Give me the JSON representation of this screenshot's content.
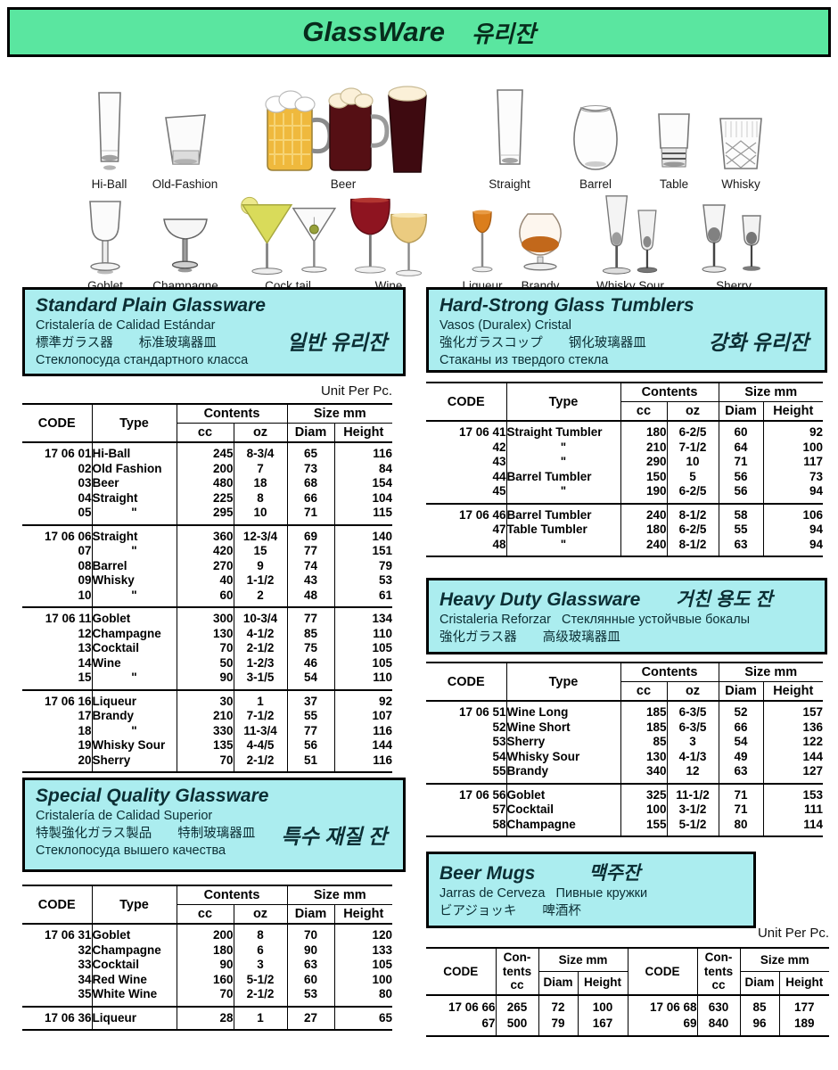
{
  "page": {
    "title_en": "GlassWare",
    "title_ko": "유리잔",
    "unit_note": "Unit Per Pc."
  },
  "figures": {
    "row1": [
      "Hi-Ball",
      "Old-Fashion",
      "Beer",
      "Straight",
      "Barrel",
      "Table",
      "Whisky"
    ],
    "row2": [
      "Goblet",
      "Champagne",
      "Cock tail",
      "Wine",
      "Liqueur",
      "Brandy",
      "Whisky Sour",
      "Sherry"
    ]
  },
  "sections": {
    "standard": {
      "title": "Standard Plain Glassware",
      "korean": "일반 유리잔",
      "line1": "Cristalería de Calidad Estándar",
      "line2": "標準ガラス器　　标准玻璃器皿",
      "line3": "Стеклопосуда стандартного класса"
    },
    "hard": {
      "title": "Hard-Strong Glass Tumblers",
      "korean": "강화 유리잔",
      "line1": "Vasos (Duralex) Cristal",
      "line2": "強化ガラスコップ　　钢化玻璃器皿",
      "line3": "Стаканы из твердого стекла"
    },
    "heavy": {
      "title": "Heavy Duty Glassware",
      "korean": "거친 용도 잔",
      "line1": "Cristaleria Reforzar   Стеклянные устойчвые бокалы",
      "line2": "強化ガラス器　　高级玻璃器皿"
    },
    "special": {
      "title": "Special Quality Glassware",
      "korean": "특수 재질 잔",
      "line1": "Cristalería de Calidad Superior",
      "line2": "特製強化ガラス製品　　特制玻璃器皿",
      "line3": "Стеклопосуда вышего качества"
    },
    "beer": {
      "title": "Beer Mugs",
      "korean": "맥주잔",
      "line1": "Jarras de Cerveza   Пивные кружки",
      "line2": "ビアジョッキ　　啤酒杯"
    }
  },
  "headers": {
    "code": "CODE",
    "type": "Type",
    "contents": "Contents",
    "cc": "cc",
    "oz": "oz",
    "size": "Size mm",
    "diam": "Diam",
    "height": "Height",
    "con_lines": [
      "Con-",
      "tents",
      "cc"
    ]
  },
  "tables": {
    "standard": [
      [
        [
          "17 06 01",
          "Hi-Ball",
          "245",
          "8-3/4",
          "65",
          "116"
        ],
        [
          "02",
          "Old Fashion",
          "200",
          "7",
          "73",
          "84"
        ],
        [
          "03",
          "Beer",
          "480",
          "18",
          "68",
          "154"
        ],
        [
          "04",
          "Straight",
          "225",
          "8",
          "66",
          "104"
        ],
        [
          "05",
          "\"",
          "295",
          "10",
          "71",
          "115"
        ]
      ],
      [
        [
          "17 06 06",
          "Straight",
          "360",
          "12-3/4",
          "69",
          "140"
        ],
        [
          "07",
          "\"",
          "420",
          "15",
          "77",
          "151"
        ],
        [
          "08",
          "Barrel",
          "270",
          "9",
          "74",
          "79"
        ],
        [
          "09",
          "Whisky",
          "40",
          "1-1/2",
          "43",
          "53"
        ],
        [
          "10",
          "\"",
          "60",
          "2",
          "48",
          "61"
        ]
      ],
      [
        [
          "17 06 11",
          "Goblet",
          "300",
          "10-3/4",
          "77",
          "134"
        ],
        [
          "12",
          "Champagne",
          "130",
          "4-1/2",
          "85",
          "110"
        ],
        [
          "13",
          "Cocktail",
          "70",
          "2-1/2",
          "75",
          "105"
        ],
        [
          "14",
          "Wine",
          "50",
          "1-2/3",
          "46",
          "105"
        ],
        [
          "15",
          "\"",
          "90",
          "3-1/5",
          "54",
          "110"
        ]
      ],
      [
        [
          "17 06 16",
          "Liqueur",
          "30",
          "1",
          "37",
          "92"
        ],
        [
          "17",
          "Brandy",
          "210",
          "7-1/2",
          "55",
          "107"
        ],
        [
          "18",
          "\"",
          "330",
          "11-3/4",
          "77",
          "116"
        ],
        [
          "19",
          "Whisky Sour",
          "135",
          "4-4/5",
          "56",
          "144"
        ],
        [
          "20",
          "Sherry",
          "70",
          "2-1/2",
          "51",
          "116"
        ]
      ]
    ],
    "hard": [
      [
        [
          "17 06 41",
          "Straight Tumbler",
          "180",
          "6-2/5",
          "60",
          "92"
        ],
        [
          "42",
          "\"",
          "210",
          "7-1/2",
          "64",
          "100"
        ],
        [
          "43",
          "\"",
          "290",
          "10",
          "71",
          "117"
        ],
        [
          "44",
          "Barrel Tumbler",
          "150",
          "5",
          "56",
          "73"
        ],
        [
          "45",
          "\"",
          "190",
          "6-2/5",
          "56",
          "94"
        ]
      ],
      [
        [
          "17 06 46",
          "Barrel Tumbler",
          "240",
          "8-1/2",
          "58",
          "106"
        ],
        [
          "47",
          "Table Tumbler",
          "180",
          "6-2/5",
          "55",
          "94"
        ],
        [
          "48",
          "\"",
          "240",
          "8-1/2",
          "63",
          "94"
        ]
      ]
    ],
    "heavy": [
      [
        [
          "17 06 51",
          "Wine Long",
          "185",
          "6-3/5",
          "52",
          "157"
        ],
        [
          "52",
          "Wine Short",
          "185",
          "6-3/5",
          "66",
          "136"
        ],
        [
          "53",
          "Sherry",
          "85",
          "3",
          "54",
          "122"
        ],
        [
          "54",
          "Whisky Sour",
          "130",
          "4-1/3",
          "49",
          "144"
        ],
        [
          "55",
          "Brandy",
          "340",
          "12",
          "63",
          "127"
        ]
      ],
      [
        [
          "17 06 56",
          "Goblet",
          "325",
          "11-1/2",
          "71",
          "153"
        ],
        [
          "57",
          "Cocktail",
          "100",
          "3-1/2",
          "71",
          "111"
        ],
        [
          "58",
          "Champagne",
          "155",
          "5-1/2",
          "80",
          "114"
        ]
      ]
    ],
    "special": [
      [
        [
          "17 06 31",
          "Goblet",
          "200",
          "8",
          "70",
          "120"
        ],
        [
          "32",
          "Champagne",
          "180",
          "6",
          "90",
          "133"
        ],
        [
          "33",
          "Cocktail",
          "90",
          "3",
          "63",
          "105"
        ],
        [
          "34",
          "Red Wine",
          "160",
          "5-1/2",
          "60",
          "100"
        ],
        [
          "35",
          "White Wine",
          "70",
          "2-1/2",
          "53",
          "80"
        ]
      ],
      [
        [
          "17 06 36",
          "Liqueur",
          "28",
          "1",
          "27",
          "65"
        ]
      ]
    ],
    "beer": [
      [
        "17 06 66",
        "265",
        "72",
        "100",
        "17 06 68",
        "630",
        "85",
        "177"
      ],
      [
        "67",
        "500",
        "79",
        "167",
        "69",
        "840",
        "96",
        "189"
      ]
    ]
  }
}
